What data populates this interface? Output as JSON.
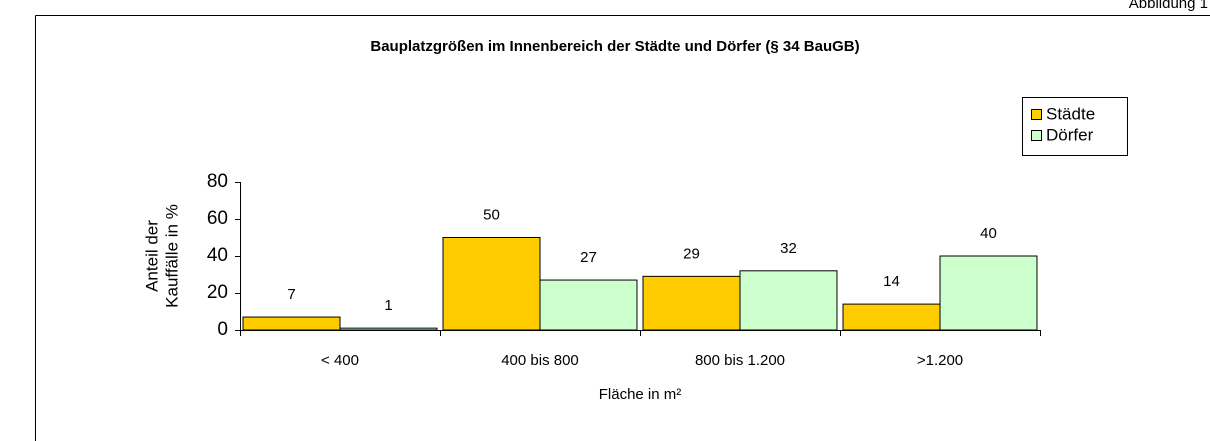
{
  "chart_data": {
    "type": "bar",
    "corner_label": "Abbildung 1",
    "title": "Bauplatzgrößen im Innenbereich der Städte und Dörfer (§ 34 BauGB)",
    "categories": [
      "< 400",
      "400 bis 800",
      "800 bis 1.200",
      ">1.200"
    ],
    "series": [
      {
        "name": "Städte",
        "color": "#ffcc00",
        "values": [
          7,
          50,
          29,
          14
        ]
      },
      {
        "name": "Dörfer",
        "color": "#ccffcc",
        "values": [
          1,
          27,
          32,
          40
        ]
      }
    ],
    "ylim": [
      0,
      80
    ],
    "yticks": [
      0,
      20,
      40,
      60,
      80
    ],
    "xlabel": "Fläche in  m²",
    "ylabel": [
      "Anteil der",
      "Kauffälle in %"
    ],
    "legend": "upper right"
  }
}
